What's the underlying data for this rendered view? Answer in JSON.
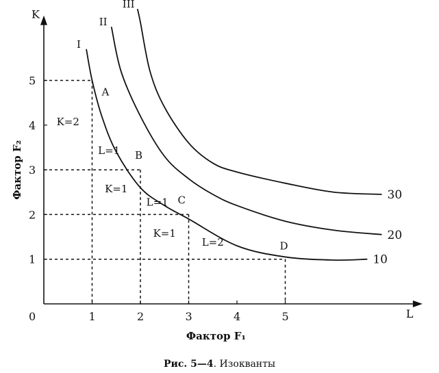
{
  "chart_data": {
    "type": "line",
    "title": "",
    "xlabel": "Фактор  F₁",
    "ylabel": "Фактор  F₂",
    "x_axis_letter": "L",
    "y_axis_letter": "K",
    "origin_label": "0",
    "x_ticks": [
      "1",
      "2",
      "3",
      "4",
      "5"
    ],
    "y_ticks": [
      "1",
      "2",
      "3",
      "4",
      "5"
    ],
    "xlim": [
      0,
      7.7
    ],
    "ylim": [
      0,
      6.3
    ],
    "grid": false,
    "series": [
      {
        "name": "I",
        "end_label": "10",
        "x": [
          0.88,
          1.0,
          1.2,
          1.5,
          2.0,
          2.5,
          3.0,
          4.0,
          5.0,
          6.0,
          6.7
        ],
        "y": [
          5.7,
          5.0,
          4.2,
          3.4,
          2.6,
          2.2,
          1.9,
          1.3,
          1.05,
          0.98,
          1.0
        ]
      },
      {
        "name": "II",
        "end_label": "20",
        "x": [
          1.4,
          1.6,
          2.0,
          2.5,
          3.0,
          3.5,
          4.0,
          5.0,
          6.0,
          7.0
        ],
        "y": [
          6.2,
          5.2,
          4.2,
          3.3,
          2.8,
          2.45,
          2.2,
          1.85,
          1.65,
          1.55
        ]
      },
      {
        "name": "III",
        "end_label": "30",
        "x": [
          1.94,
          2.0,
          2.2,
          2.5,
          3.0,
          3.5,
          4.0,
          5.0,
          6.0,
          7.0
        ],
        "y": [
          6.6,
          6.3,
          5.2,
          4.4,
          3.6,
          3.15,
          2.95,
          2.7,
          2.5,
          2.45
        ]
      }
    ],
    "points": [
      {
        "label": "A",
        "x": 1.0,
        "y": 5.0
      },
      {
        "label": "B",
        "x": 2.0,
        "y": 3.0
      },
      {
        "label": "C",
        "x": 3.0,
        "y": 2.0
      },
      {
        "label": "D",
        "x": 5.0,
        "y": 1.0
      }
    ],
    "annotations": [
      {
        "text": "K=2",
        "x": 0.5,
        "y": 4.0
      },
      {
        "text": "L=1",
        "x": 1.35,
        "y": 3.35
      },
      {
        "text": "K=1",
        "x": 1.5,
        "y": 2.5
      },
      {
        "text": "L=1",
        "x": 2.35,
        "y": 2.2
      },
      {
        "text": "K=1",
        "x": 2.5,
        "y": 1.5
      },
      {
        "text": "L=2",
        "x": 3.5,
        "y": 1.3
      }
    ]
  },
  "caption": {
    "bold": "Рис. 5—4",
    "rest": ". Изокванты"
  }
}
